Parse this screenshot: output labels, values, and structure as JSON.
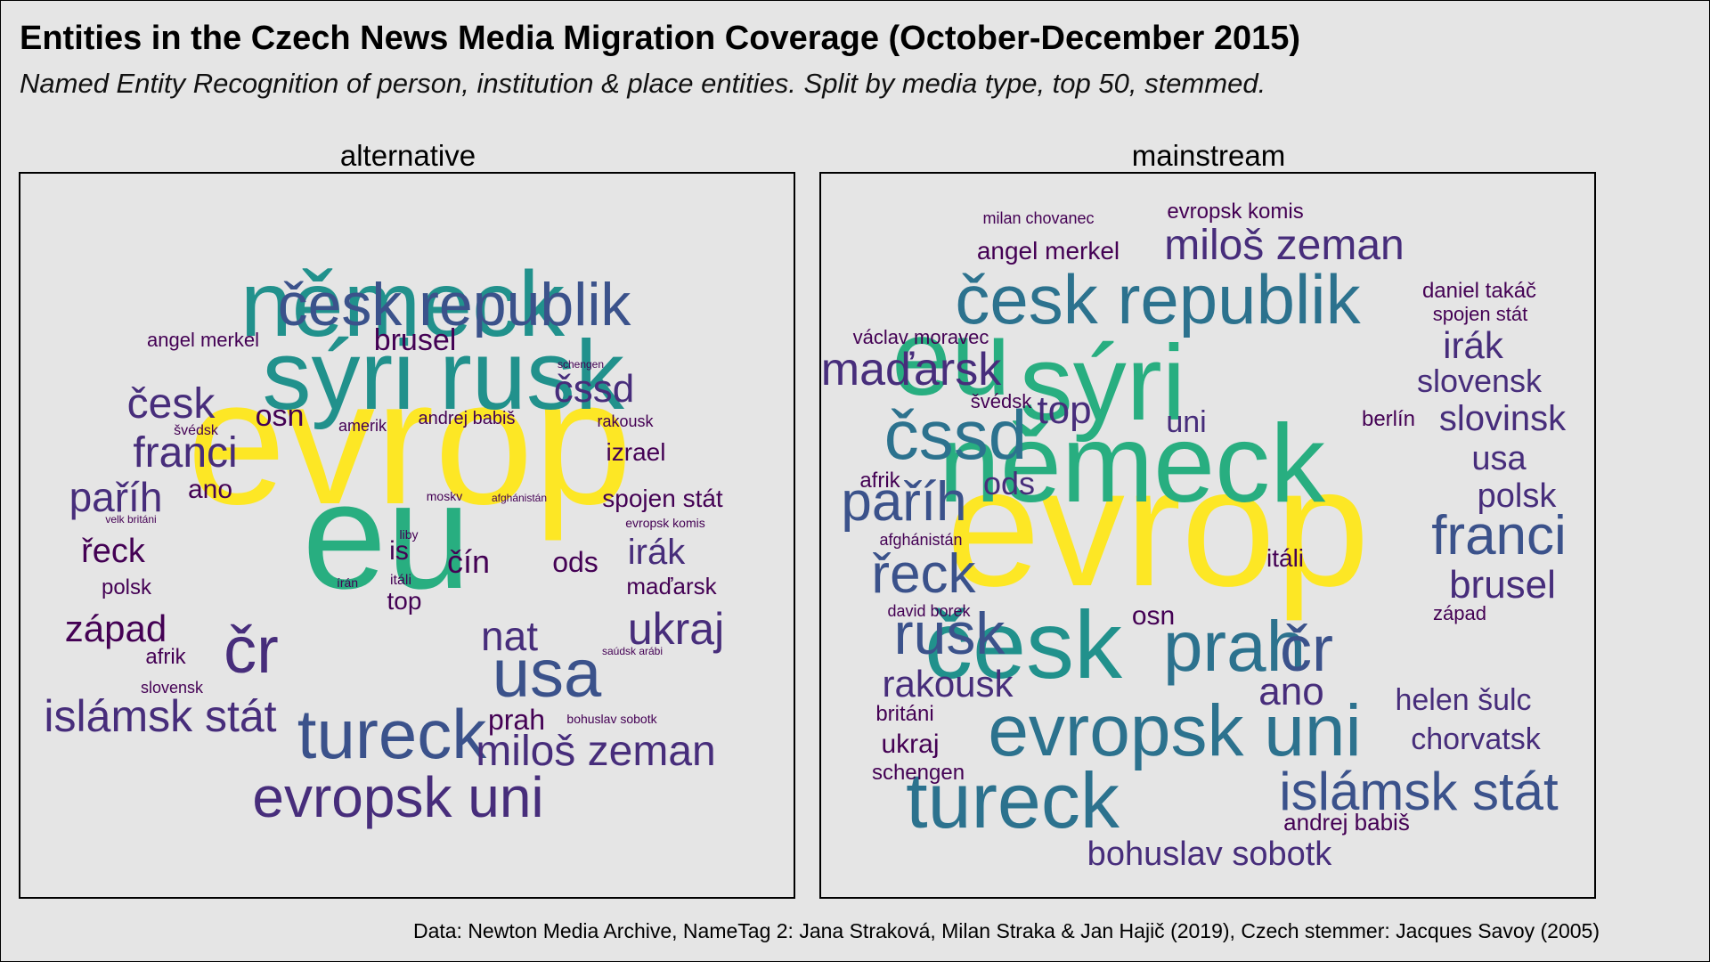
{
  "title": "Entities in the Czech News Media Migration Coverage (October-December 2015)",
  "subtitle": "Named Entity Recognition of person, institution & place entities. Split by media type, top 50, stemmed.",
  "caption": "Data: Newton Media Archive, NameTag 2: Jana Straková, Milan Straka & Jan Hajič (2019), Czech stemmer: Jacques Savoy (2005)",
  "palette": [
    "#440154",
    "#472d7b",
    "#3b528b",
    "#2c728e",
    "#21918c",
    "#28ae80",
    "#5ec962",
    "#fde725"
  ],
  "chart_data": {
    "type": "wordcloud",
    "facets": [
      {
        "label": "alternative",
        "words": [
          {
            "text": "evrop",
            "weight": 100
          },
          {
            "text": "eu",
            "weight": 85
          },
          {
            "text": "sýri",
            "weight": 62
          },
          {
            "text": "rusk",
            "weight": 62
          },
          {
            "text": "německ",
            "weight": 60
          },
          {
            "text": "česk republik",
            "weight": 44
          },
          {
            "text": "tureck",
            "weight": 44
          },
          {
            "text": "usa",
            "weight": 44
          },
          {
            "text": "evropsk uni",
            "weight": 38
          },
          {
            "text": "čr",
            "weight": 36
          },
          {
            "text": "islámsk stát",
            "weight": 32
          },
          {
            "text": "miloš zeman",
            "weight": 29
          },
          {
            "text": "franci",
            "weight": 29
          },
          {
            "text": "ukraj",
            "weight": 29
          },
          {
            "text": "nat",
            "weight": 28
          },
          {
            "text": "česk",
            "weight": 28
          },
          {
            "text": "paříh",
            "weight": 25
          },
          {
            "text": "čssd",
            "weight": 25
          },
          {
            "text": "irák",
            "weight": 24
          },
          {
            "text": "západ",
            "weight": 22
          },
          {
            "text": "řeck",
            "weight": 22
          },
          {
            "text": "osn",
            "weight": 19
          },
          {
            "text": "brusel",
            "weight": 19
          },
          {
            "text": "ods",
            "weight": 18
          },
          {
            "text": "čín",
            "weight": 18
          },
          {
            "text": "is",
            "weight": 18
          },
          {
            "text": "ano",
            "weight": 17
          },
          {
            "text": "prah",
            "weight": 17
          },
          {
            "text": "izrael",
            "weight": 16
          },
          {
            "text": "spojen stát",
            "weight": 16
          },
          {
            "text": "maďarsk",
            "weight": 16
          },
          {
            "text": "top",
            "weight": 15
          },
          {
            "text": "polsk",
            "weight": 14
          },
          {
            "text": "afrik",
            "weight": 14
          },
          {
            "text": "angel merkel",
            "weight": 14
          },
          {
            "text": "andrej babiš",
            "weight": 12
          },
          {
            "text": "rakousk",
            "weight": 11
          },
          {
            "text": "amerik",
            "weight": 11
          },
          {
            "text": "slovensk",
            "weight": 11
          },
          {
            "text": "itáli",
            "weight": 10
          },
          {
            "text": "švédsk",
            "weight": 10
          },
          {
            "text": "bohuslav sobotk",
            "weight": 9
          },
          {
            "text": "moskv",
            "weight": 9
          },
          {
            "text": "liby",
            "weight": 9
          },
          {
            "text": "írán",
            "weight": 9
          },
          {
            "text": "evropsk komis",
            "weight": 8
          },
          {
            "text": "saúdsk arábi",
            "weight": 8
          },
          {
            "text": "afghánistán",
            "weight": 7
          },
          {
            "text": "schengen",
            "weight": 7
          },
          {
            "text": "velk británi",
            "weight": 7
          }
        ]
      },
      {
        "label": "mainstream",
        "words": [
          {
            "text": "evrop",
            "weight": 100
          },
          {
            "text": "eu",
            "weight": 72
          },
          {
            "text": "sýri",
            "weight": 72
          },
          {
            "text": "německ",
            "weight": 72
          },
          {
            "text": "česk",
            "weight": 67
          },
          {
            "text": "evropsk uni",
            "weight": 58
          },
          {
            "text": "tureck",
            "weight": 58
          },
          {
            "text": "česk republik",
            "weight": 55
          },
          {
            "text": "čssd",
            "weight": 50
          },
          {
            "text": "prah",
            "weight": 50
          },
          {
            "text": "rusk",
            "weight": 45
          },
          {
            "text": "čr",
            "weight": 44
          },
          {
            "text": "paříh",
            "weight": 42
          },
          {
            "text": "franci",
            "weight": 42
          },
          {
            "text": "řeck",
            "weight": 42
          },
          {
            "text": "islámsk stát",
            "weight": 40
          },
          {
            "text": "maďarsk",
            "weight": 38
          },
          {
            "text": "miloš zeman",
            "weight": 35
          },
          {
            "text": "brusel",
            "weight": 32
          },
          {
            "text": "irák",
            "weight": 32
          },
          {
            "text": "ano",
            "weight": 32
          },
          {
            "text": "slovinsk",
            "weight": 30
          },
          {
            "text": "rakousk",
            "weight": 30
          },
          {
            "text": "polsk",
            "weight": 30
          },
          {
            "text": "top",
            "weight": 30
          },
          {
            "text": "slovensk",
            "weight": 28
          },
          {
            "text": "usa",
            "weight": 28
          },
          {
            "text": "bohuslav sobotk",
            "weight": 28
          },
          {
            "text": "ods",
            "weight": 26
          },
          {
            "text": "chorvatsk",
            "weight": 26
          },
          {
            "text": "helen šulc",
            "weight": 25
          },
          {
            "text": "uni",
            "weight": 24
          },
          {
            "text": "angel merkel",
            "weight": 23
          },
          {
            "text": "osn",
            "weight": 23
          },
          {
            "text": "itáli",
            "weight": 22
          },
          {
            "text": "ukraj",
            "weight": 22
          },
          {
            "text": "afrik",
            "weight": 20
          },
          {
            "text": "andrej babiš",
            "weight": 20
          },
          {
            "text": "václav moravec",
            "weight": 19
          },
          {
            "text": "daniel takáč",
            "weight": 19
          },
          {
            "text": "evropsk komis",
            "weight": 19
          },
          {
            "text": "berlín",
            "weight": 19
          },
          {
            "text": "británi",
            "weight": 19
          },
          {
            "text": "spojen stát",
            "weight": 18
          },
          {
            "text": "švédsk",
            "weight": 18
          },
          {
            "text": "schengen",
            "weight": 18
          },
          {
            "text": "milan chovanec",
            "weight": 17
          },
          {
            "text": "západ",
            "weight": 17
          },
          {
            "text": "afghánistán",
            "weight": 16
          },
          {
            "text": "david borek",
            "weight": 16
          }
        ]
      }
    ]
  }
}
